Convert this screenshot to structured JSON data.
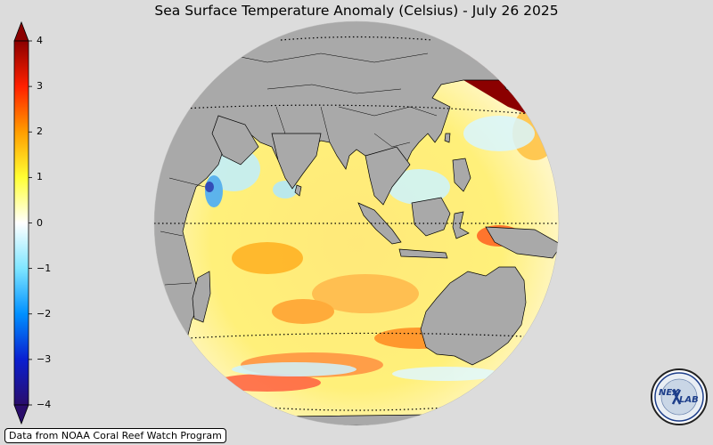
{
  "title": "Sea Surface Temperature Anomaly (Celsius) - July 26 2025",
  "credit": "Data from NOAA Coral Reef Watch Program",
  "logo": {
    "icon": "nexlab-logo-icon",
    "text_left": "NEX",
    "text_right": "LAB"
  },
  "colorbar": {
    "min": -4,
    "max": 4,
    "ticks": [
      {
        "value": 4,
        "label": "4"
      },
      {
        "value": 3,
        "label": "3"
      },
      {
        "value": 2,
        "label": "2"
      },
      {
        "value": 1,
        "label": "1"
      },
      {
        "value": 0,
        "label": "0"
      },
      {
        "value": -1,
        "label": "−1"
      },
      {
        "value": -2,
        "label": "−2"
      },
      {
        "value": -3,
        "label": "−3"
      },
      {
        "value": -4,
        "label": "−4"
      }
    ],
    "colors": [
      "#2a0d6b",
      "#0040ff",
      "#00b7ff",
      "#b9f2ff",
      "#ffffff",
      "#ffff33",
      "#ffb000",
      "#ff3000",
      "#8b0000"
    ]
  },
  "map": {
    "projection": "orthographic",
    "region": "Indian Ocean",
    "land_color": "#a9a9a9",
    "background_color": "#dcdcdc"
  }
}
